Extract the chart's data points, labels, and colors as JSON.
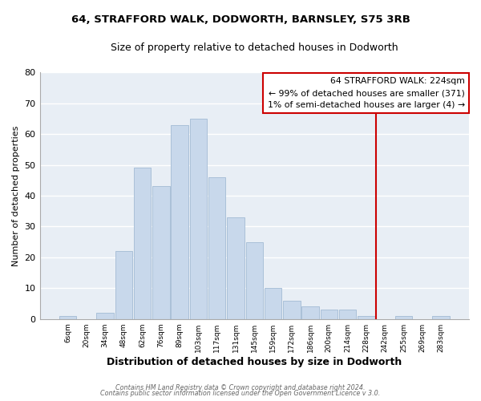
{
  "title": "64, STRAFFORD WALK, DODWORTH, BARNSLEY, S75 3RB",
  "subtitle": "Size of property relative to detached houses in Dodworth",
  "xlabel": "Distribution of detached houses by size in Dodworth",
  "ylabel": "Number of detached properties",
  "bar_color": "#c8d8eb",
  "bar_edge_color": "#aac0d8",
  "categories": [
    "6sqm",
    "20sqm",
    "34sqm",
    "48sqm",
    "62sqm",
    "76sqm",
    "89sqm",
    "103sqm",
    "117sqm",
    "131sqm",
    "145sqm",
    "159sqm",
    "172sqm",
    "186sqm",
    "200sqm",
    "214sqm",
    "228sqm",
    "242sqm",
    "255sqm",
    "269sqm",
    "283sqm"
  ],
  "values": [
    1,
    0,
    2,
    22,
    49,
    43,
    63,
    65,
    46,
    33,
    25,
    10,
    6,
    4,
    3,
    3,
    1,
    0,
    1,
    0,
    1
  ],
  "ylim": [
    0,
    80
  ],
  "yticks": [
    0,
    10,
    20,
    30,
    40,
    50,
    60,
    70,
    80
  ],
  "vline_x_index": 16.5,
  "vline_color": "#cc0000",
  "annotation_box_text": "64 STRAFFORD WALK: 224sqm\n← 99% of detached houses are smaller (371)\n1% of semi-detached houses are larger (4) →",
  "box_edge_color": "#cc0000",
  "footer1": "Contains HM Land Registry data © Crown copyright and database right 2024.",
  "footer2": "Contains public sector information licensed under the Open Government Licence v 3.0.",
  "bg_color": "#ffffff",
  "plot_bg_color": "#e8eef5",
  "grid_color": "#ffffff"
}
